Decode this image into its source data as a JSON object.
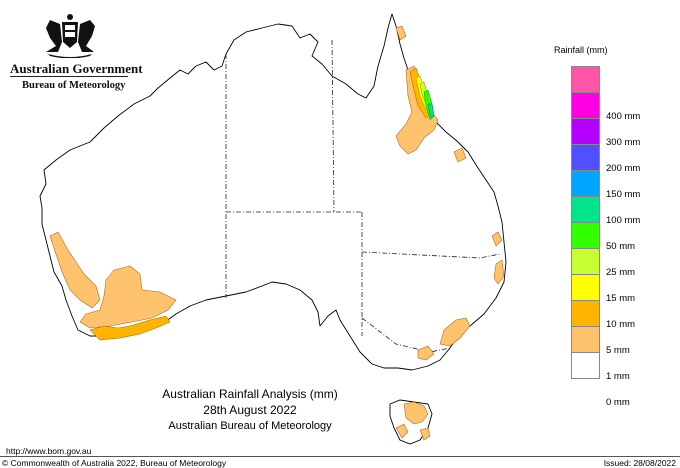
{
  "header": {
    "government": "Australian Government",
    "bureau": "Bureau of Meteorology"
  },
  "map_title": {
    "line1": "Australian Rainfall Analysis (mm)",
    "line2": "28th August 2022",
    "line3": "Australian Bureau of Meteorology"
  },
  "legend": {
    "title": "Rainfall (mm)",
    "items": [
      {
        "label": "",
        "color": "#ff55a8"
      },
      {
        "label": "400 mm",
        "color": "#ff00e6"
      },
      {
        "label": "300 mm",
        "color": "#b400ff"
      },
      {
        "label": "200 mm",
        "color": "#5050ff"
      },
      {
        "label": "150 mm",
        "color": "#00a5ff"
      },
      {
        "label": "100 mm",
        "color": "#00e58c"
      },
      {
        "label": "50 mm",
        "color": "#32ff00"
      },
      {
        "label": "25 mm",
        "color": "#c8ff32"
      },
      {
        "label": "15 mm",
        "color": "#ffff00"
      },
      {
        "label": "10 mm",
        "color": "#ffb400"
      },
      {
        "label": "5 mm",
        "color": "#ffc36e"
      },
      {
        "label": "1 mm",
        "color": "#ffffff"
      },
      {
        "label": "0 mm",
        "color": ""
      }
    ]
  },
  "footer": {
    "url": "http://www.bom.gov.au",
    "copyright": "© Commonwealth of Australia 2022, Bureau of Meteorology",
    "issued": "Issued: 28/08/2022"
  }
}
